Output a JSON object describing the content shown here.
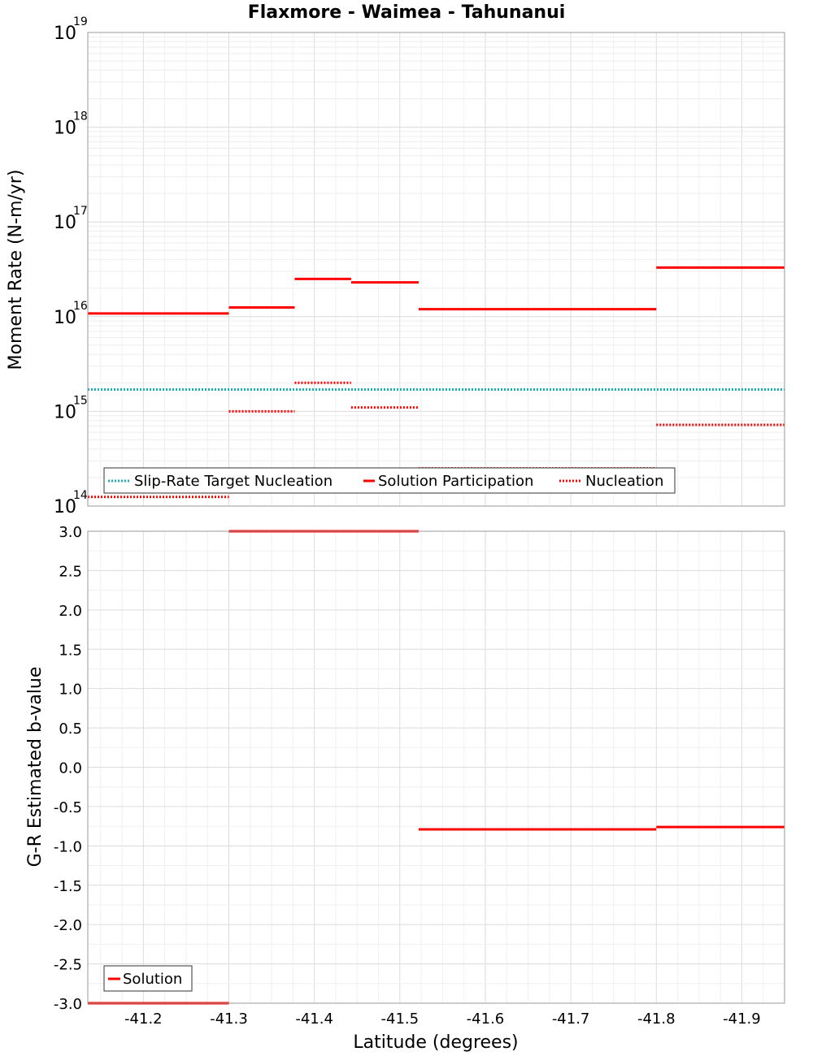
{
  "chart_data": [
    {
      "type": "line",
      "title": "Flaxmore - Waimea - Tahunanui",
      "ylabel": "Moment Rate (N-m/yr)",
      "yscale": "log",
      "ylim": [
        100000000000000.0,
        1e+19
      ],
      "xlim": [
        -41.135,
        -41.95
      ],
      "x_reversed": true,
      "grid": true,
      "y_ticks": [
        {
          "base": "10",
          "exp": "14"
        },
        {
          "base": "10",
          "exp": "15"
        },
        {
          "base": "10",
          "exp": "16"
        },
        {
          "base": "10",
          "exp": "17"
        },
        {
          "base": "10",
          "exp": "18"
        },
        {
          "base": "10",
          "exp": "19"
        }
      ],
      "legend_position": "bottom-left",
      "colors": {
        "target": "#1ab0b8",
        "solution": "#ff0000"
      },
      "series": [
        {
          "name": "Slip-Rate Target Nucleation",
          "style": "dotted",
          "segments": [
            {
              "x1": -41.135,
              "x2": -41.95,
              "y": 1700000000000000.0
            }
          ]
        },
        {
          "name": "Solution Participation",
          "style": "solid",
          "segments": [
            {
              "x1": -41.135,
              "x2": -41.3,
              "y": 1.08e+16
            },
            {
              "x1": -41.3,
              "x2": -41.377,
              "y": 1.25e+16
            },
            {
              "x1": -41.377,
              "x2": -41.443,
              "y": 2.5e+16
            },
            {
              "x1": -41.443,
              "x2": -41.522,
              "y": 2.3e+16
            },
            {
              "x1": -41.522,
              "x2": -41.8,
              "y": 1.2e+16
            },
            {
              "x1": -41.8,
              "x2": -41.95,
              "y": 3.3e+16
            }
          ]
        },
        {
          "name": "Nucleation",
          "style": "dotted",
          "segments": [
            {
              "x1": -41.135,
              "x2": -41.3,
              "y": 125000000000000.0
            },
            {
              "x1": -41.3,
              "x2": -41.377,
              "y": 1000000000000000.0
            },
            {
              "x1": -41.377,
              "x2": -41.443,
              "y": 2000000000000000.0
            },
            {
              "x1": -41.443,
              "x2": -41.522,
              "y": 1100000000000000.0
            },
            {
              "x1": -41.522,
              "x2": -41.8,
              "y": 250000000000000.0
            },
            {
              "x1": -41.8,
              "x2": -41.95,
              "y": 720000000000000.0
            }
          ]
        }
      ]
    },
    {
      "type": "line",
      "xlabel": "Latitude (degrees)",
      "ylabel": "G-R Estimated b-value",
      "ylim": [
        -3.0,
        3.0
      ],
      "xlim": [
        -41.135,
        -41.95
      ],
      "x_reversed": true,
      "grid": true,
      "y_ticks": [
        "-3.0",
        "-2.5",
        "-2.0",
        "-1.5",
        "-1.0",
        "-0.5",
        "0.0",
        "0.5",
        "1.0",
        "1.5",
        "2.0",
        "2.5",
        "3.0"
      ],
      "x_ticks": [
        "-41.2",
        "-41.3",
        "-41.4",
        "-41.5",
        "-41.6",
        "-41.7",
        "-41.8",
        "-41.9"
      ],
      "legend_position": "bottom-left",
      "colors": {
        "solution": "#ff0000"
      },
      "series": [
        {
          "name": "Solution",
          "style": "solid",
          "segments": [
            {
              "x1": -41.135,
              "x2": -41.3,
              "y": -3.0
            },
            {
              "x1": -41.3,
              "x2": -41.522,
              "y": 3.0
            },
            {
              "x1": -41.522,
              "x2": -41.8,
              "y": -0.79
            },
            {
              "x1": -41.8,
              "x2": -41.95,
              "y": -0.76
            }
          ]
        }
      ]
    }
  ]
}
